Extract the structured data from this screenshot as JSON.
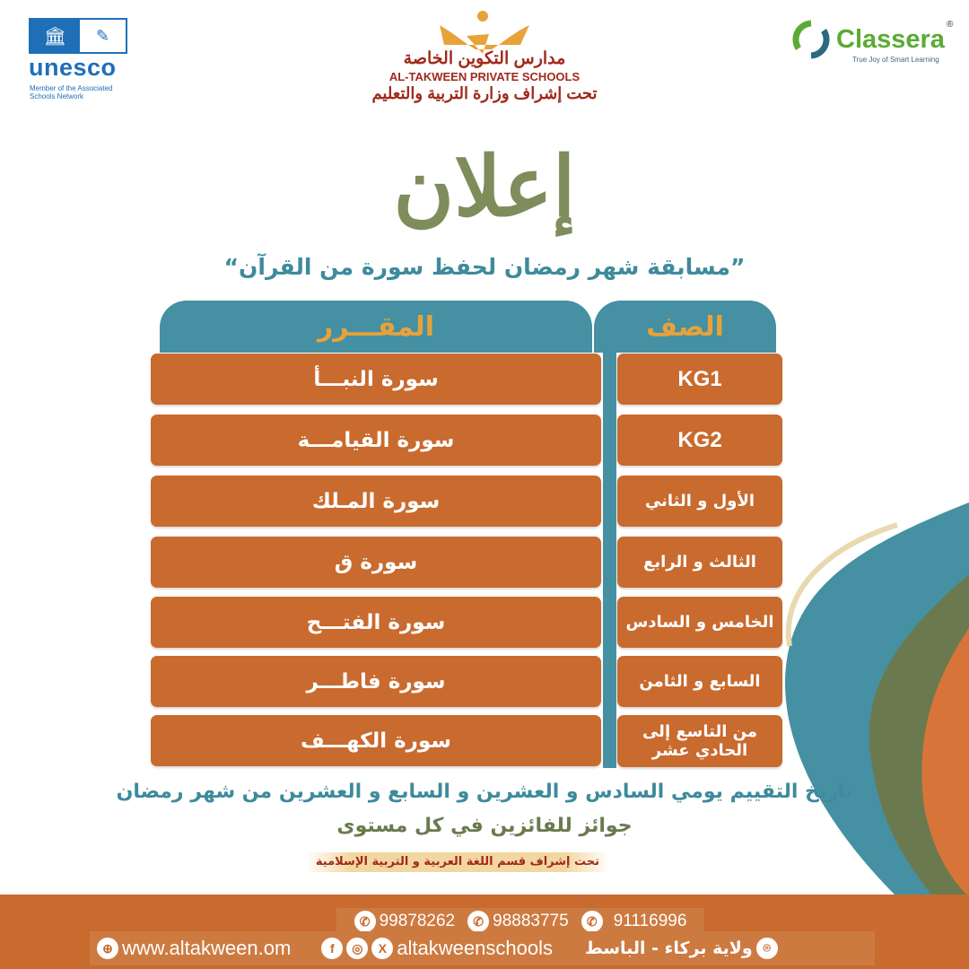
{
  "header": {
    "unesco": {
      "word": "unesco",
      "subtitle": "Member of the Associated Schools Network"
    },
    "school": {
      "name_ar": "مدارس التكوين الخاصة",
      "name_en": "AL-TAKWEEN PRIVATE SCHOOLS",
      "supervision": "تحت إشراف وزارة التربية والتعليم"
    },
    "classera": {
      "name": "Classera",
      "reg": "®",
      "tagline": "True Joy of Smart Learning"
    }
  },
  "announcement": "إعلان",
  "competition_title": "”مسابقة شهر رمضان لحفظ سورة من القرآن“",
  "table": {
    "headers": {
      "grade": "الصف",
      "curriculum": "المقـــرر"
    },
    "rows": [
      {
        "grade": "KG1",
        "surah": "سورة النبـــأ"
      },
      {
        "grade": "KG2",
        "surah": "سورة القيامـــة"
      },
      {
        "grade": "الأول و الثاني",
        "surah": "سورة المـلك"
      },
      {
        "grade": "الثالث و الرابع",
        "surah": "سورة ق"
      },
      {
        "grade": "الخامس و السادس",
        "surah": "سورة الفتـــح"
      },
      {
        "grade": "السابع و الثامن",
        "surah": "سورة فاطـــر"
      },
      {
        "grade": "من التاسع إلى الحادي عشر",
        "surah": "سورة الكهـــف"
      }
    ]
  },
  "evaluation_date": "تاريخ التقييم يومي السادس و العشرين و السابع و العشرين من شهر رمضان",
  "prizes": "جوائز للفائزين في كل مستوى",
  "supervision_dept": "تحت إشراف قسم اللغة العربية و التربية الإسلامية",
  "footer": {
    "phones": [
      "99878262",
      "98883775",
      "91116996"
    ],
    "website": "www.altakween.om",
    "social": "altakweenschools",
    "location": "ولاية بركاء - الباسط",
    "icons": [
      "whatsapp-icon",
      "globe-icon",
      "facebook-icon",
      "instagram-icon",
      "x-icon",
      "location-pin-icon"
    ]
  },
  "colors": {
    "teal": "#4590a2",
    "orange": "#c96a2e",
    "olive": "#6b7a4e",
    "maroon": "#a02a1c",
    "gold": "#e8a23a"
  }
}
